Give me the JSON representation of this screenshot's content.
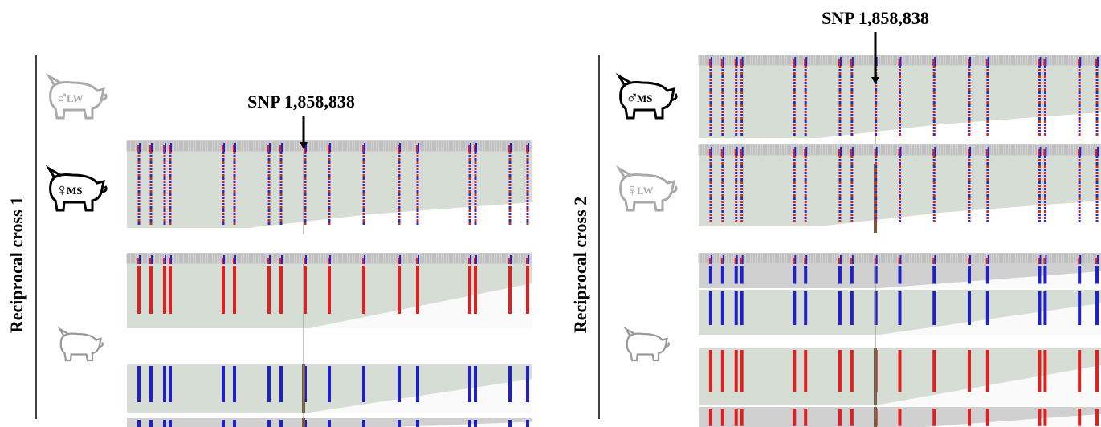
{
  "left": {
    "side_label": "Reciprocal cross 1",
    "snp_label": "SNP 1,858,838",
    "pigs": [
      {
        "sex": "♂",
        "breed": "LW"
      },
      {
        "sex": "♀",
        "breed": "MS"
      }
    ]
  },
  "right": {
    "side_label": "Reciprocal cross 2",
    "snp_label": "SNP 1,858,838",
    "pigs": [
      {
        "sex": "♂",
        "breed": "MS"
      },
      {
        "sex": "♀",
        "breed": "LW"
      }
    ]
  }
}
